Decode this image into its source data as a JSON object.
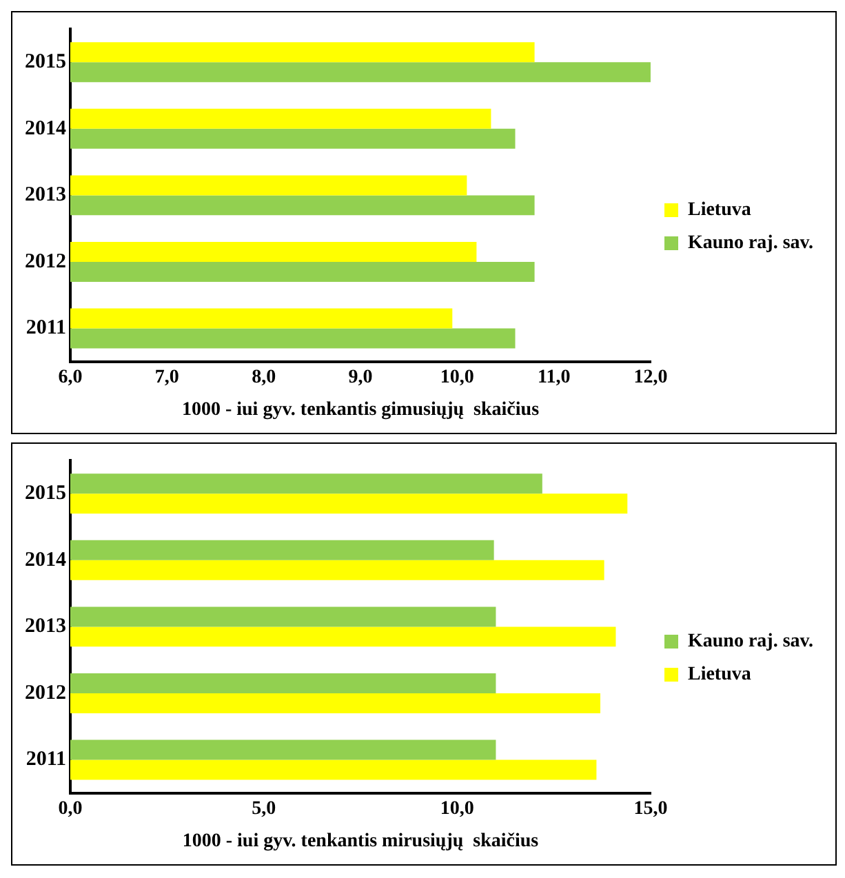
{
  "chart_data": [
    {
      "type": "bar",
      "orientation": "horizontal",
      "xlabel": "1000 - iui gyv. tenkantis gimusiųjų  skaičius",
      "categories": [
        "2015",
        "2014",
        "2013",
        "2012",
        "2011"
      ],
      "series": [
        {
          "name": "Lietuva",
          "color": "#ffff00",
          "values": [
            10.8,
            10.35,
            10.1,
            10.2,
            9.95
          ]
        },
        {
          "name": "Kauno raj. sav.",
          "color": "#92d050",
          "values": [
            12.0,
            10.6,
            10.8,
            10.8,
            10.6
          ]
        }
      ],
      "xlim": [
        6,
        12
      ],
      "xticks": [
        {
          "value": 6,
          "label": "6,0"
        },
        {
          "value": 7,
          "label": "7,0"
        },
        {
          "value": 8,
          "label": "8,0"
        },
        {
          "value": 9,
          "label": "9,0"
        },
        {
          "value": 10,
          "label": "10,0"
        },
        {
          "value": 11,
          "label": "11,0"
        },
        {
          "value": 12,
          "label": "12,0"
        }
      ],
      "grid": false,
      "legend": "right"
    },
    {
      "type": "bar",
      "orientation": "horizontal",
      "xlabel": "1000 - iui gyv. tenkantis mirusiųjų  skaičius",
      "categories": [
        "2015",
        "2014",
        "2013",
        "2012",
        "2011"
      ],
      "series": [
        {
          "name": "Kauno raj. sav.",
          "color": "#92d050",
          "values": [
            12.2,
            10.95,
            11.0,
            11.0,
            11.0
          ]
        },
        {
          "name": "Lietuva",
          "color": "#ffff00",
          "values": [
            14.4,
            13.8,
            14.1,
            13.7,
            13.6
          ]
        }
      ],
      "xlim": [
        0,
        15
      ],
      "xticks": [
        {
          "value": 0,
          "label": "0,0"
        },
        {
          "value": 5,
          "label": "5,0"
        },
        {
          "value": 10,
          "label": "10,0"
        },
        {
          "value": 15,
          "label": "15,0"
        }
      ],
      "grid": false,
      "legend": "right"
    }
  ]
}
